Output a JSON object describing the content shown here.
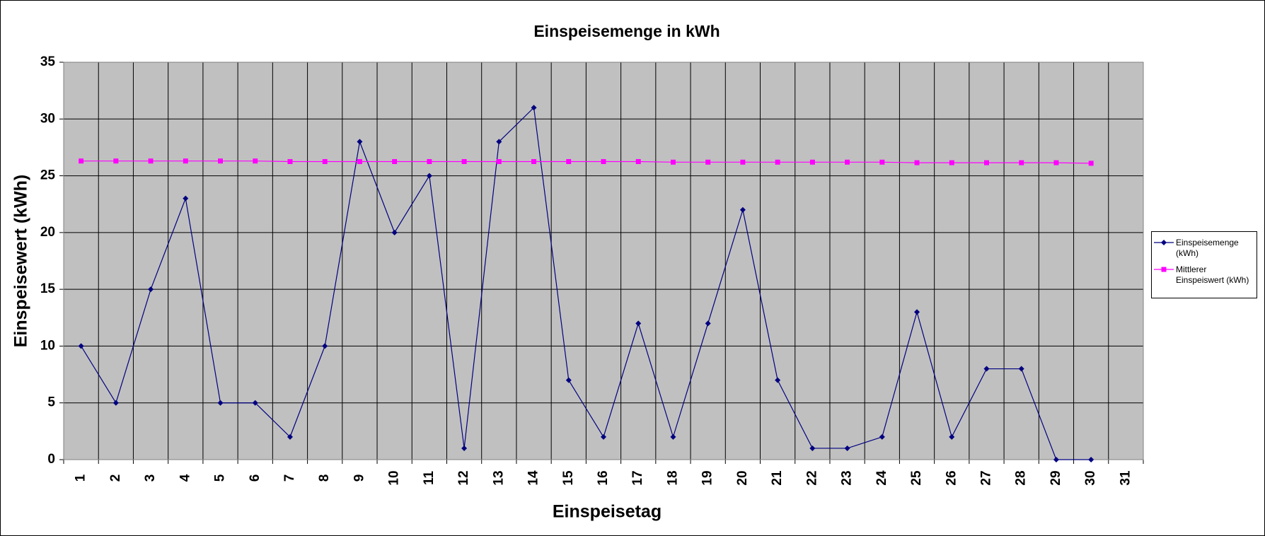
{
  "chart_data": {
    "type": "line",
    "title": "Einspeisemenge in kWh",
    "x_label": "Einspeisetag",
    "y_label": "Einspeisewert  (kWh)",
    "categories": [
      "1",
      "2",
      "3",
      "4",
      "5",
      "6",
      "7",
      "8",
      "9",
      "10",
      "11",
      "12",
      "13",
      "14",
      "15",
      "16",
      "17",
      "18",
      "19",
      "20",
      "21",
      "22",
      "23",
      "24",
      "25",
      "26",
      "27",
      "28",
      "29",
      "30",
      "31"
    ],
    "series": [
      {
        "name": "Einspeisemenge (kWh)",
        "color": "#000080",
        "marker": "diamond",
        "values": [
          10,
          5,
          15,
          23,
          5,
          5,
          2,
          10,
          28,
          20,
          25,
          1,
          28,
          31,
          7,
          2,
          12,
          2,
          12,
          22,
          7,
          1,
          1,
          2,
          13,
          2,
          8,
          8,
          0,
          0,
          null
        ]
      },
      {
        "name": "Mittlerer Einspeiswert (kWh)",
        "color": "#ff00ff",
        "marker": "square",
        "values": [
          26.3,
          26.3,
          26.3,
          26.3,
          26.3,
          26.3,
          26.25,
          26.25,
          26.25,
          26.25,
          26.25,
          26.25,
          26.25,
          26.25,
          26.25,
          26.25,
          26.25,
          26.2,
          26.2,
          26.2,
          26.2,
          26.2,
          26.2,
          26.2,
          26.15,
          26.15,
          26.15,
          26.15,
          26.15,
          26.1,
          null
        ]
      }
    ],
    "ylim": [
      0,
      35
    ],
    "yticks": [
      0,
      5,
      10,
      15,
      20,
      25,
      30,
      35
    ],
    "grid": true,
    "legend": "right"
  }
}
